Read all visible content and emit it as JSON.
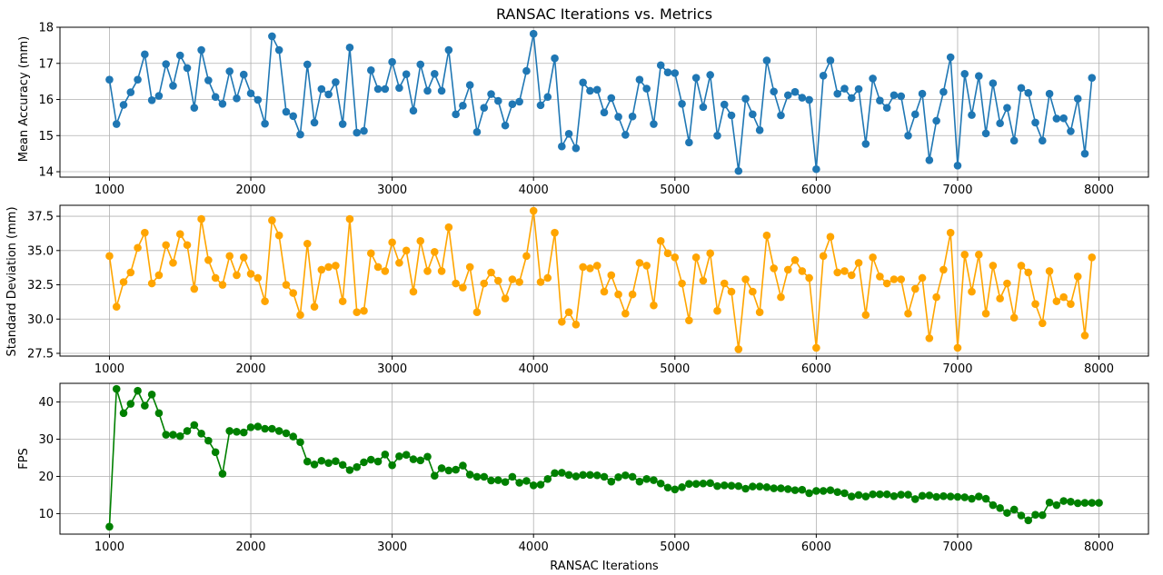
{
  "colors": {
    "series1": "#1f77b4",
    "series2": "#ffa500",
    "series3": "#008000"
  },
  "chart_data": [
    {
      "type": "line",
      "title": "RANSAC Iterations vs. Metrics",
      "xlabel": "",
      "ylabel": "Mean Accuracy (mm)",
      "xlim": [
        650,
        8350
      ],
      "ylim": [
        13.85,
        18.0
      ],
      "xticks": [
        1000,
        2000,
        3000,
        4000,
        5000,
        6000,
        7000,
        8000
      ],
      "yticks": [
        14,
        15,
        16,
        17,
        18
      ],
      "ytick_labels": [
        "14",
        "15",
        "16",
        "17",
        "18"
      ],
      "grid": true,
      "marker": "circle",
      "x_start": 1000,
      "x_step": 50,
      "values": [
        16.55,
        15.32,
        15.85,
        16.2,
        16.55,
        17.25,
        15.98,
        16.1,
        16.98,
        16.38,
        17.22,
        16.87,
        15.77,
        17.37,
        16.53,
        16.07,
        15.88,
        16.78,
        16.03,
        16.69,
        16.17,
        15.99,
        15.33,
        17.75,
        17.37,
        15.66,
        15.54,
        15.03,
        16.97,
        15.36,
        16.29,
        16.14,
        16.48,
        15.32,
        17.44,
        15.08,
        15.13,
        16.81,
        16.29,
        16.29,
        17.04,
        16.32,
        16.7,
        15.69,
        16.97,
        16.24,
        16.71,
        16.24,
        17.37,
        15.59,
        15.83,
        16.4,
        15.1,
        15.77,
        16.15,
        15.96,
        15.28,
        15.87,
        15.94,
        16.79,
        17.82,
        15.84,
        16.07,
        17.14,
        14.7,
        15.05,
        14.65,
        16.47,
        16.24,
        16.27,
        15.64,
        16.04,
        15.52,
        15.02,
        15.53,
        16.55,
        16.3,
        15.32,
        16.95,
        16.75,
        16.73,
        15.88,
        14.81,
        16.6,
        15.79,
        16.68,
        15.0,
        15.86,
        15.56,
        14.02,
        16.02,
        15.59,
        15.15,
        17.08,
        16.22,
        15.56,
        16.12,
        16.21,
        16.05,
        15.99,
        14.07,
        16.66,
        17.08,
        16.16,
        16.3,
        16.04,
        16.29,
        14.77,
        16.58,
        15.97,
        15.77,
        16.12,
        16.09,
        15.0,
        15.59,
        16.16,
        14.32,
        15.41,
        16.21,
        17.17,
        14.17,
        16.71,
        15.57,
        16.65,
        15.06,
        16.45,
        15.34,
        15.77,
        14.86,
        16.32,
        16.18,
        15.36,
        14.86,
        16.16,
        15.47,
        15.48,
        15.12,
        16.02,
        14.5,
        16.6
      ]
    },
    {
      "type": "line",
      "title": "",
      "xlabel": "",
      "ylabel": "Standard Deviation (mm)",
      "xlim": [
        650,
        8350
      ],
      "ylim": [
        27.3,
        38.3
      ],
      "xticks": [
        1000,
        2000,
        3000,
        4000,
        5000,
        6000,
        7000,
        8000
      ],
      "yticks": [
        27.5,
        30.0,
        32.5,
        35.0,
        37.5
      ],
      "ytick_labels": [
        "27.5",
        "30.0",
        "32.5",
        "35.0",
        "37.5"
      ],
      "grid": true,
      "marker": "circle",
      "x_start": 1000,
      "x_step": 50,
      "values": [
        34.6,
        30.9,
        32.7,
        33.4,
        35.2,
        36.3,
        32.6,
        33.2,
        35.4,
        34.1,
        36.2,
        35.4,
        32.2,
        37.3,
        34.3,
        33.0,
        32.5,
        34.6,
        33.2,
        34.5,
        33.3,
        33.0,
        31.3,
        37.2,
        36.1,
        32.5,
        31.9,
        30.3,
        35.5,
        30.9,
        33.6,
        33.8,
        33.9,
        31.3,
        37.3,
        30.5,
        30.6,
        34.8,
        33.8,
        33.5,
        35.6,
        34.1,
        35.0,
        32.0,
        35.7,
        33.5,
        34.9,
        33.5,
        36.7,
        32.6,
        32.3,
        33.8,
        30.5,
        32.6,
        33.4,
        32.8,
        31.5,
        32.9,
        32.7,
        34.6,
        37.9,
        32.7,
        33.0,
        36.3,
        29.8,
        30.5,
        29.6,
        33.8,
        33.7,
        33.9,
        32.0,
        33.2,
        31.8,
        30.4,
        31.8,
        34.1,
        33.9,
        31.0,
        35.7,
        34.8,
        34.5,
        32.6,
        29.9,
        34.5,
        32.8,
        34.8,
        30.6,
        32.6,
        32.0,
        27.8,
        32.9,
        32.0,
        30.5,
        36.1,
        33.7,
        31.6,
        33.6,
        34.3,
        33.5,
        33.0,
        27.9,
        34.6,
        36.0,
        33.4,
        33.5,
        33.2,
        34.1,
        30.3,
        34.5,
        33.1,
        32.6,
        32.9,
        32.9,
        30.4,
        32.2,
        33.0,
        28.6,
        31.6,
        33.6,
        36.3,
        27.9,
        34.7,
        32.0,
        34.7,
        30.4,
        33.9,
        31.5,
        32.6,
        30.1,
        33.9,
        33.4,
        31.1,
        29.7,
        33.5,
        31.3,
        31.6,
        31.1,
        33.1,
        28.8,
        34.5
      ]
    },
    {
      "type": "line",
      "title": "",
      "xlabel": "RANSAC Iterations",
      "ylabel": "FPS",
      "xlim": [
        650,
        8350
      ],
      "ylim": [
        4.5,
        45.0
      ],
      "xticks": [
        1000,
        2000,
        3000,
        4000,
        5000,
        6000,
        7000,
        8000
      ],
      "yticks": [
        10,
        20,
        30,
        40
      ],
      "ytick_labels": [
        "10",
        "20",
        "30",
        "40"
      ],
      "grid": true,
      "marker": "circle",
      "x_start": 1000,
      "x_step": 50,
      "values": [
        6.5,
        43.5,
        37.0,
        39.5,
        43.0,
        39.0,
        42.0,
        37.0,
        31.2,
        31.2,
        30.8,
        32.2,
        33.8,
        31.5,
        29.6,
        26.5,
        20.7,
        32.2,
        32.0,
        31.8,
        33.2,
        33.4,
        32.8,
        32.8,
        32.2,
        31.6,
        30.7,
        29.2,
        24.0,
        23.2,
        24.2,
        23.6,
        24.1,
        23.1,
        21.7,
        22.5,
        23.8,
        24.5,
        24.0,
        25.9,
        23.0,
        25.4,
        25.8,
        24.6,
        24.3,
        25.3,
        20.2,
        22.2,
        21.6,
        21.8,
        22.9,
        20.5,
        19.9,
        19.9,
        18.9,
        19.0,
        18.5,
        19.9,
        18.3,
        18.8,
        17.6,
        17.8,
        19.3,
        20.9,
        21.0,
        20.4,
        20.0,
        20.4,
        20.4,
        20.3,
        19.9,
        18.6,
        19.8,
        20.3,
        19.9,
        18.6,
        19.3,
        19.0,
        18.1,
        17.0,
        16.5,
        17.1,
        18.0,
        18.0,
        18.1,
        18.2,
        17.4,
        17.6,
        17.5,
        17.4,
        16.7,
        17.3,
        17.3,
        17.1,
        16.8,
        16.8,
        16.6,
        16.3,
        16.4,
        15.5,
        16.1,
        16.1,
        16.3,
        15.8,
        15.5,
        14.6,
        15.0,
        14.6,
        15.2,
        15.2,
        15.2,
        14.7,
        15.1,
        15.1,
        13.9,
        14.8,
        14.9,
        14.5,
        14.7,
        14.6,
        14.5,
        14.4,
        14.0,
        14.6,
        14.0,
        12.3,
        11.5,
        10.2,
        11.1,
        9.5,
        8.2,
        9.7,
        9.6,
        13.0,
        12.3,
        13.4,
        13.2,
        12.8,
        12.9,
        12.9,
        12.9
      ]
    }
  ]
}
